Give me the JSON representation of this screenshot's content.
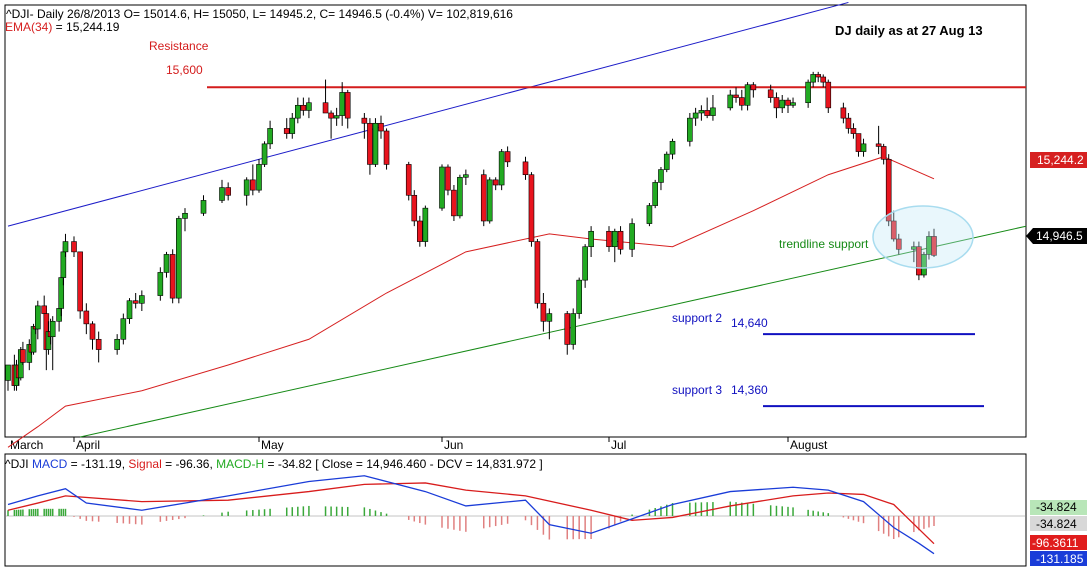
{
  "header": {
    "ohlc_line": "^DJI- Daily 26/8/2013 O= 15014.6, H= 15050, L= 14945.2, C= 14946.5 (-0.4%) V= 102,819,616",
    "ema_label": "EMA(34)",
    "ema_value": " = 15,244.19"
  },
  "title": "DJ daily as at 27 Aug 13",
  "annotations": {
    "resistance_label": "Resistance",
    "resistance_value": "15,600",
    "support2_label": "support 2",
    "support2_value": "14,640",
    "support3_label": "support 3",
    "support3_value": "14,360",
    "trendline_label": "trendline support"
  },
  "price_axis": {
    "ema_tag": "15,244.2",
    "close_tag": "14,946.5"
  },
  "months": [
    "March",
    "April",
    "May",
    "Jun",
    "Jul",
    "August"
  ],
  "macd_panel": {
    "symbol": "^DJI",
    "macd_label": "MACD",
    "macd_value": "-131.19",
    "signal_label": "Signal",
    "signal_value": "-96.36",
    "hist_label": "MACD-H",
    "hist_value": "-34.82",
    "close_text": "[ Close = 14,946.460 - DCV = 14,831.972 ]",
    "tags": [
      "-34.824",
      "-34.824",
      "-96.3611",
      "-131.185"
    ]
  },
  "colors": {
    "up": "#22aa22",
    "down": "#e8141e",
    "ema": "#d62020",
    "resistance": "#d41c1c",
    "upper_channel": "#1c1cc8",
    "trendline": "#168a16",
    "support": "#1010c0",
    "macd": "#1a3cd8",
    "signal": "#d81c1c"
  },
  "chart_data": {
    "type": "candlestick",
    "y_range": [
      14240,
      15920
    ],
    "levels": {
      "resistance": 15600,
      "support_2": 14640,
      "support_3": 14360
    },
    "candles": [
      [
        "2013-03-01",
        14460,
        14520,
        14420,
        14520
      ],
      [
        "2013-03-04",
        14520,
        14560,
        14420,
        14440
      ],
      [
        "2013-03-05",
        14440,
        14540,
        14420,
        14520
      ],
      [
        "2013-03-06",
        14520,
        14560,
        14440,
        14470
      ],
      [
        "2013-03-07",
        14470,
        14590,
        14460,
        14580
      ],
      [
        "2013-03-08",
        14580,
        14610,
        14520,
        14530
      ],
      [
        "2013-03-11",
        14530,
        14620,
        14500,
        14600
      ],
      [
        "2013-03-12",
        14600,
        14650,
        14560,
        14570
      ],
      [
        "2013-03-13",
        14570,
        14680,
        14560,
        14670
      ],
      [
        "2013-03-14",
        14670,
        14720,
        14640,
        14660
      ],
      [
        "2013-03-15",
        14660,
        14770,
        14620,
        14750
      ],
      [
        "2013-03-18",
        14750,
        14790,
        14700,
        14720
      ],
      [
        "2013-03-19",
        14720,
        14720,
        14500,
        14580
      ],
      [
        "2013-03-20",
        14580,
        14690,
        14560,
        14650
      ],
      [
        "2013-03-21",
        14650,
        14700,
        14600,
        14630
      ],
      [
        "2013-03-22",
        14630,
        14710,
        14500,
        14690
      ],
      [
        "2013-03-25",
        14690,
        14760,
        14650,
        14740
      ],
      [
        "2013-03-26",
        14740,
        14870,
        14710,
        14860
      ],
      [
        "2013-03-27",
        14860,
        14980,
        14830,
        14960
      ],
      [
        "2013-03-28",
        14960,
        15030,
        14940,
        15000
      ],
      [
        "2013-04-01",
        15000,
        15020,
        14940,
        14960
      ],
      [
        "2013-04-02",
        14960,
        14960,
        14700,
        14730
      ],
      [
        "2013-04-03",
        14730,
        14760,
        14640,
        14680
      ],
      [
        "2013-04-04",
        14680,
        14690,
        14580,
        14620
      ],
      [
        "2013-04-05",
        14620,
        14650,
        14530,
        14580
      ],
      [
        "2013-04-08",
        14580,
        14640,
        14560,
        14620
      ],
      [
        "2013-04-09",
        14620,
        14720,
        14600,
        14700
      ],
      [
        "2013-04-10",
        14700,
        14780,
        14680,
        14770
      ],
      [
        "2013-04-11",
        14770,
        14800,
        14740,
        14760
      ],
      [
        "2013-04-12",
        14760,
        14810,
        14730,
        14790
      ],
      [
        "2013-04-15",
        14790,
        14900,
        14770,
        14880
      ],
      [
        "2013-04-16",
        14880,
        14960,
        14860,
        14950
      ],
      [
        "2013-04-17",
        14950,
        14970,
        14760,
        14780
      ],
      [
        "2013-04-18",
        14780,
        15100,
        14760,
        15090
      ],
      [
        "2013-04-19",
        15090,
        15130,
        15040,
        15110
      ],
      [
        "2013-04-22",
        15110,
        15180,
        15100,
        15160
      ],
      [
        "2013-04-25",
        15160,
        15240,
        15150,
        15210
      ],
      [
        "2013-04-26",
        15210,
        15230,
        15160,
        15180
      ],
      [
        "2013-04-29",
        15180,
        15250,
        15140,
        15240
      ],
      [
        "2013-04-30",
        15240,
        15300,
        15180,
        15200
      ],
      [
        "2013-05-01",
        15200,
        15320,
        15190,
        15300
      ],
      [
        "2013-05-02",
        15300,
        15390,
        15290,
        15380
      ],
      [
        "2013-05-03",
        15380,
        15470,
        15360,
        15440
      ],
      [
        "2013-05-06",
        15440,
        15480,
        15400,
        15420
      ],
      [
        "2013-05-07",
        15420,
        15500,
        15400,
        15480
      ],
      [
        "2013-05-08",
        15480,
        15560,
        15460,
        15530
      ],
      [
        "2013-05-09",
        15530,
        15560,
        15490,
        15510
      ],
      [
        "2013-05-10",
        15510,
        15560,
        15480,
        15540
      ],
      [
        "2013-05-13",
        15540,
        15630,
        15500,
        15500
      ],
      [
        "2013-05-14",
        15500,
        15510,
        15400,
        15480
      ],
      [
        "2013-05-15",
        15480,
        15520,
        15450,
        15490
      ],
      [
        "2013-05-16",
        15490,
        15620,
        15450,
        15580
      ],
      [
        "2013-05-17",
        15580,
        15590,
        15440,
        15480
      ],
      [
        "2013-05-20",
        15480,
        15500,
        15400,
        15460
      ],
      [
        "2013-05-21",
        15460,
        15480,
        15260,
        15300
      ],
      [
        "2013-05-22",
        15300,
        15480,
        15290,
        15460
      ],
      [
        "2013-05-23",
        15460,
        15490,
        15400,
        15430
      ],
      [
        "2013-05-24",
        15430,
        15440,
        15280,
        15300
      ],
      [
        "2013-05-28",
        15300,
        15310,
        15160,
        15180
      ],
      [
        "2013-05-29",
        15180,
        15200,
        15060,
        15080
      ],
      [
        "2013-05-30",
        15080,
        15100,
        14980,
        15000
      ],
      [
        "2013-05-31",
        15000,
        15140,
        14980,
        15130
      ],
      [
        "2013-06-03",
        15130,
        15300,
        15120,
        15290
      ],
      [
        "2013-06-04",
        15290,
        15300,
        15180,
        15200
      ],
      [
        "2013-06-05",
        15200,
        15220,
        15080,
        15100
      ],
      [
        "2013-06-06",
        15100,
        15260,
        15090,
        15250
      ],
      [
        "2013-06-07",
        15250,
        15280,
        15220,
        15260
      ],
      [
        "2013-06-10",
        15260,
        15280,
        15060,
        15080
      ],
      [
        "2013-06-11",
        15080,
        15250,
        15070,
        15240
      ],
      [
        "2013-06-12",
        15240,
        15250,
        15200,
        15220
      ],
      [
        "2013-06-13",
        15220,
        15360,
        15200,
        15350
      ],
      [
        "2013-06-14",
        15350,
        15370,
        15290,
        15310
      ],
      [
        "2013-06-17",
        15310,
        15330,
        15240,
        15260
      ],
      [
        "2013-06-18",
        15260,
        15270,
        14980,
        15000
      ],
      [
        "2013-06-19",
        15000,
        15010,
        14740,
        14760
      ],
      [
        "2013-06-20",
        14760,
        14800,
        14650,
        14690
      ],
      [
        "2013-06-21",
        14690,
        14740,
        14620,
        14720
      ],
      [
        "2013-06-24",
        14720,
        14730,
        14560,
        14600
      ],
      [
        "2013-06-25",
        14600,
        14740,
        14580,
        14720
      ],
      [
        "2013-06-26",
        14720,
        14860,
        14700,
        14850
      ],
      [
        "2013-06-27",
        14850,
        14990,
        14820,
        14980
      ],
      [
        "2013-06-28",
        14980,
        15060,
        14940,
        15040
      ],
      [
        "2013-07-01",
        15040,
        15060,
        14960,
        14980
      ],
      [
        "2013-07-02",
        14980,
        15050,
        14920,
        15040
      ],
      [
        "2013-07-03",
        15040,
        15060,
        14950,
        14970
      ],
      [
        "2013-07-05",
        14970,
        15090,
        14940,
        15070
      ],
      [
        "2013-07-08",
        15070,
        15150,
        15060,
        15140
      ],
      [
        "2013-07-09",
        15140,
        15240,
        15130,
        15230
      ],
      [
        "2013-07-10",
        15230,
        15290,
        15200,
        15280
      ],
      [
        "2013-07-11",
        15280,
        15350,
        15270,
        15340
      ],
      [
        "2013-07-12",
        15340,
        15400,
        15320,
        15390
      ],
      [
        "2013-07-15",
        15390,
        15500,
        15370,
        15480
      ],
      [
        "2013-07-16",
        15480,
        15520,
        15450,
        15500
      ],
      [
        "2013-07-17",
        15500,
        15530,
        15470,
        15510
      ],
      [
        "2013-07-18",
        15510,
        15560,
        15480,
        15490
      ],
      [
        "2013-07-19",
        15490,
        15570,
        15470,
        15520
      ],
      [
        "2013-07-22",
        15520,
        15590,
        15510,
        15570
      ],
      [
        "2013-07-23",
        15570,
        15600,
        15540,
        15560
      ],
      [
        "2013-07-24",
        15560,
        15590,
        15510,
        15530
      ],
      [
        "2013-07-25",
        15530,
        15620,
        15510,
        15610
      ],
      [
        "2013-07-26",
        15610,
        15620,
        15560,
        15590
      ],
      [
        "2013-07-29",
        15590,
        15610,
        15540,
        15560
      ],
      [
        "2013-07-30",
        15560,
        15580,
        15480,
        15520
      ],
      [
        "2013-07-31",
        15520,
        15570,
        15500,
        15550
      ],
      [
        "2013-08-01",
        15550,
        15560,
        15500,
        15530
      ],
      [
        "2013-08-02",
        15530,
        15560,
        15520,
        15540
      ],
      [
        "2013-08-05",
        15540,
        15630,
        15520,
        15620
      ],
      [
        "2013-08-06",
        15620,
        15660,
        15600,
        15650
      ],
      [
        "2013-08-07",
        15650,
        15660,
        15620,
        15640
      ],
      [
        "2013-08-08",
        15640,
        15650,
        15600,
        15620
      ],
      [
        "2013-08-09",
        15620,
        15630,
        15500,
        15520
      ],
      [
        "2013-08-12",
        15520,
        15540,
        15460,
        15480
      ],
      [
        "2013-08-13",
        15480,
        15500,
        15420,
        15440
      ],
      [
        "2013-08-14",
        15440,
        15460,
        15400,
        15420
      ],
      [
        "2013-08-15",
        15420,
        15420,
        15330,
        15350
      ],
      [
        "2013-08-16",
        15350,
        15400,
        15330,
        15380
      ],
      [
        "2013-08-19",
        15380,
        15450,
        15340,
        15370
      ],
      [
        "2013-08-20",
        15370,
        15380,
        15300,
        15320
      ],
      [
        "2013-08-21",
        15320,
        15340,
        15060,
        15080
      ],
      [
        "2013-08-22",
        15080,
        15120,
        15000,
        15010
      ],
      [
        "2013-08-23",
        15010,
        15030,
        14950,
        14970
      ],
      [
        "2013-08-26",
        14970,
        15000,
        14920,
        14980
      ],
      [
        "2013-08-27",
        14980,
        15000,
        14850,
        14870
      ],
      [
        "2013-08-28",
        14870,
        14960,
        14860,
        14950
      ],
      [
        "2013-08-29",
        14950,
        15040,
        14930,
        15020
      ],
      [
        "2013-08-30",
        15020,
        15050,
        14940,
        14946.5
      ]
    ],
    "ema34": [
      [
        "2013-03-01",
        14200
      ],
      [
        "2013-03-15",
        14280
      ],
      [
        "2013-03-28",
        14360
      ],
      [
        "2013-04-12",
        14420
      ],
      [
        "2013-04-26",
        14520
      ],
      [
        "2013-05-10",
        14620
      ],
      [
        "2013-05-24",
        14800
      ],
      [
        "2013-06-07",
        14960
      ],
      [
        "2013-06-21",
        15030
      ],
      [
        "2013-06-28",
        15010
      ],
      [
        "2013-07-12",
        14980
      ],
      [
        "2013-07-26",
        15120
      ],
      [
        "2013-08-09",
        15260
      ],
      [
        "2013-08-20",
        15330
      ],
      [
        "2013-08-30",
        15244.19
      ]
    ],
    "upper_channel": [
      [
        "2013-03-01",
        15060
      ],
      [
        "2013-08-13",
        15930
      ]
    ],
    "trendline": [
      [
        "2013-04-02",
        14240
      ],
      [
        "2013-08-30",
        14980
      ]
    ],
    "macd": [
      [
        "2013-03-01",
        40
      ],
      [
        "2013-03-15",
        70
      ],
      [
        "2013-03-28",
        95
      ],
      [
        "2013-04-03",
        45
      ],
      [
        "2013-04-12",
        20
      ],
      [
        "2013-04-26",
        70
      ],
      [
        "2013-05-10",
        120
      ],
      [
        "2013-05-20",
        140
      ],
      [
        "2013-05-31",
        85
      ],
      [
        "2013-06-07",
        35
      ],
      [
        "2013-06-17",
        55
      ],
      [
        "2013-06-21",
        -30
      ],
      [
        "2013-06-28",
        -60
      ],
      [
        "2013-07-05",
        -10
      ],
      [
        "2013-07-12",
        40
      ],
      [
        "2013-07-22",
        85
      ],
      [
        "2013-08-02",
        100
      ],
      [
        "2013-08-09",
        90
      ],
      [
        "2013-08-16",
        50
      ],
      [
        "2013-08-22",
        -40
      ],
      [
        "2013-08-27",
        -95
      ],
      [
        "2013-08-30",
        -131.19
      ]
    ],
    "signal": [
      [
        "2013-03-01",
        20
      ],
      [
        "2013-03-15",
        45
      ],
      [
        "2013-03-28",
        70
      ],
      [
        "2013-04-12",
        50
      ],
      [
        "2013-04-26",
        55
      ],
      [
        "2013-05-10",
        85
      ],
      [
        "2013-05-20",
        110
      ],
      [
        "2013-05-31",
        115
      ],
      [
        "2013-06-07",
        90
      ],
      [
        "2013-06-17",
        70
      ],
      [
        "2013-06-28",
        20
      ],
      [
        "2013-07-05",
        -15
      ],
      [
        "2013-07-12",
        -5
      ],
      [
        "2013-07-22",
        35
      ],
      [
        "2013-08-02",
        70
      ],
      [
        "2013-08-09",
        80
      ],
      [
        "2013-08-16",
        75
      ],
      [
        "2013-08-22",
        40
      ],
      [
        "2013-08-30",
        -96.36
      ]
    ]
  }
}
